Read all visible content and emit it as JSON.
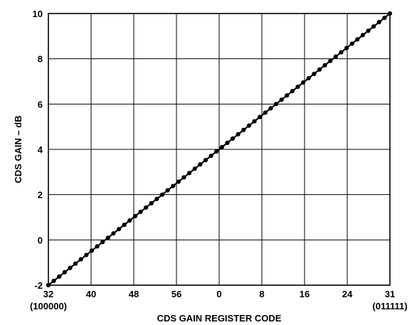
{
  "chart_data": {
    "type": "line",
    "title": "",
    "xlabel": "CDS GAIN REGISTER CODE",
    "ylabel": "CDS GAIN – dB",
    "x_tick_labels": [
      "32",
      "40",
      "48",
      "56",
      "0",
      "8",
      "16",
      "24",
      "31"
    ],
    "x_tick_sublabels": [
      "(100000)",
      "",
      "",
      "",
      "",
      "",
      "",
      "",
      "(011111)"
    ],
    "y_tick_labels": [
      "-2",
      "0",
      "2",
      "4",
      "6",
      "8",
      "10"
    ],
    "ylim": [
      -2,
      10
    ],
    "grid": true,
    "series": [
      {
        "name": "",
        "marker": "filled-circle",
        "color": "#000000",
        "x_start": 0,
        "x_end": 63,
        "y_start": -2,
        "y_end": 10,
        "num_points": 64
      }
    ]
  }
}
